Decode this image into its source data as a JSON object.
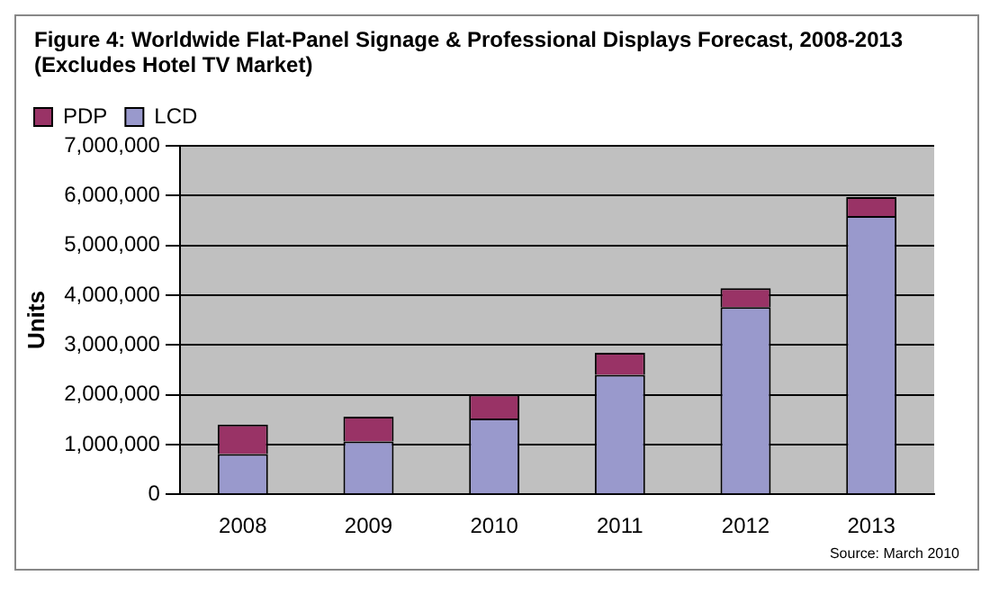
{
  "chart_data": {
    "type": "bar",
    "title": "Figure 4: Worldwide Flat-Panel Signage & Professional Displays Forecast, 2008-2013 (Excludes Hotel TV Market)",
    "ylabel": "Units",
    "categories": [
      "2008",
      "2009",
      "2010",
      "2011",
      "2012",
      "2013"
    ],
    "stacked": true,
    "series": [
      {
        "name": "LCD",
        "color": "#9999cc",
        "values": [
          810000,
          1060000,
          1520000,
          2400000,
          3760000,
          5590000
        ]
      },
      {
        "name": "PDP",
        "color": "#993366",
        "values": [
          590000,
          500000,
          480000,
          440000,
          380000,
          380000
        ]
      }
    ],
    "ylim": [
      0,
      7000000
    ],
    "yticks": [
      {
        "value": 0,
        "label": "0"
      },
      {
        "value": 1000000,
        "label": "1,000,000"
      },
      {
        "value": 2000000,
        "label": "2,000,000"
      },
      {
        "value": 3000000,
        "label": "3,000,000"
      },
      {
        "value": 4000000,
        "label": "4,000,000"
      },
      {
        "value": 5000000,
        "label": "5,000,000"
      },
      {
        "value": 6000000,
        "label": "6,000,000"
      },
      {
        "value": 7000000,
        "label": "7,000,000"
      }
    ],
    "grid": "y",
    "legend": "top left",
    "annotations": [
      "Source: March 2010"
    ]
  }
}
